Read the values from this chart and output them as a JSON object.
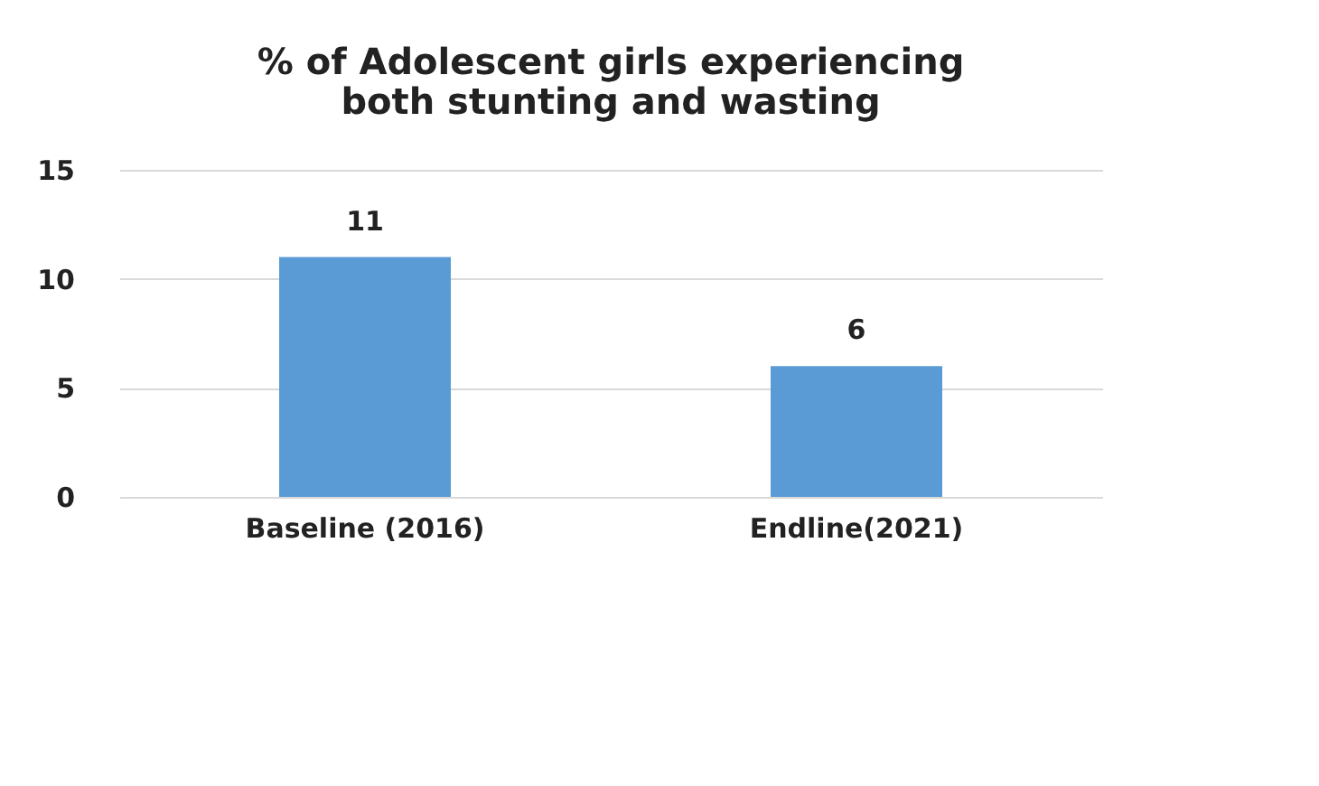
{
  "chart_data": {
    "type": "bar",
    "title": "% of Adolescent girls experiencing both stunting and wasting",
    "categories": [
      "Baseline (2016)",
      "Endline(2021)"
    ],
    "values": [
      11,
      6
    ],
    "color": "#5b9bd5",
    "ylim": [
      0,
      15
    ],
    "yticks": [
      0,
      5,
      10,
      15
    ],
    "grid": "y",
    "data_labels": true
  }
}
